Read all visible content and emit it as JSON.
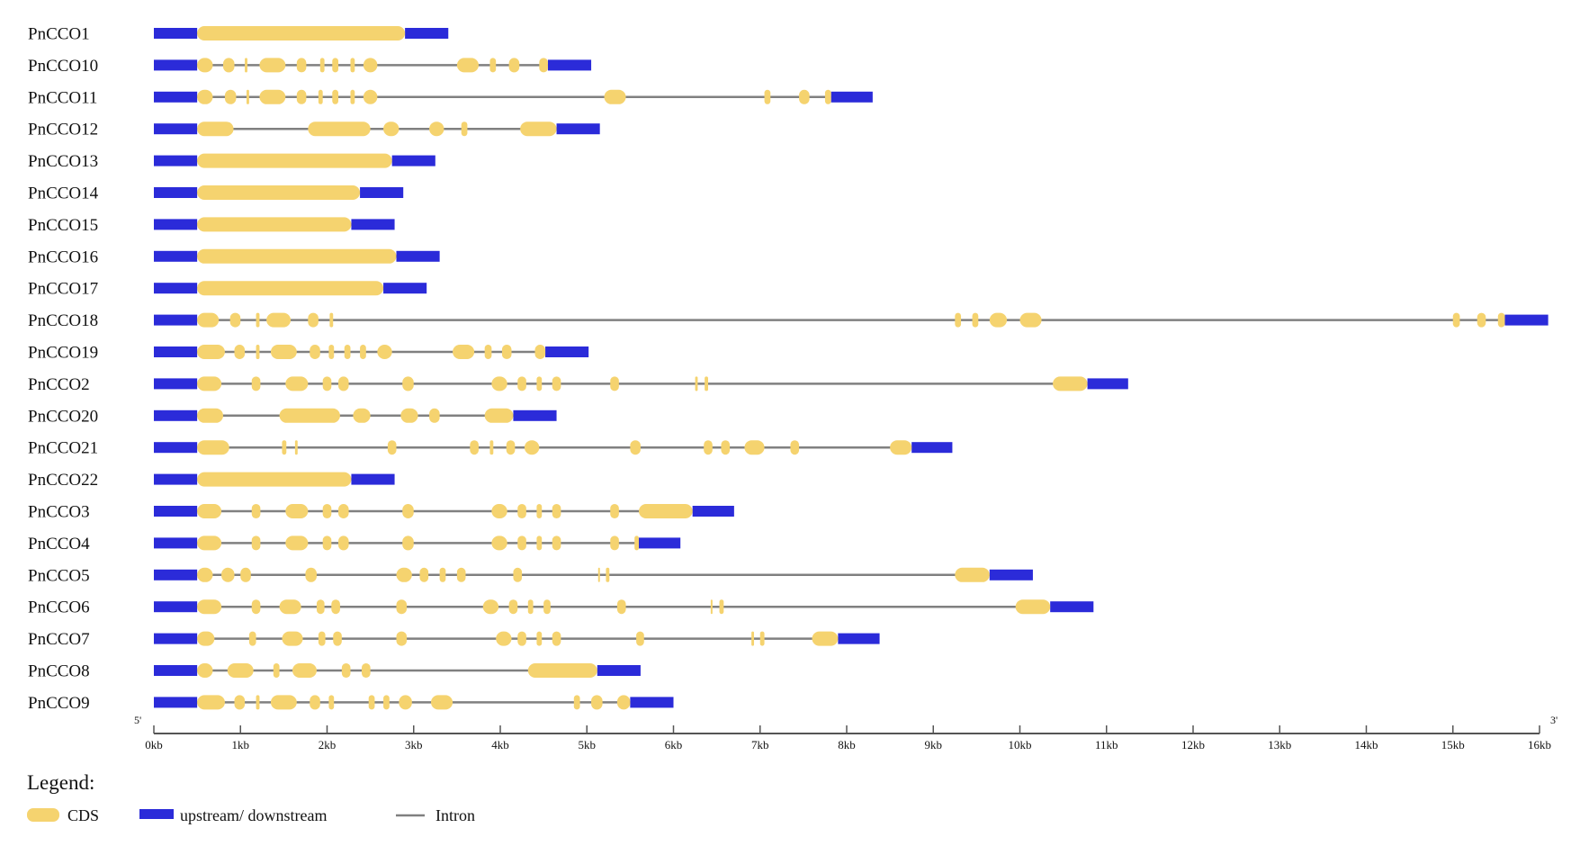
{
  "chart_data": {
    "type": "gene_structure",
    "x_unit": "kb",
    "x_range": [
      0,
      16
    ],
    "axis": {
      "left_end_label": "5'",
      "right_end_label": "3'",
      "ticks": [
        "0kb",
        "1kb",
        "2kb",
        "3kb",
        "4kb",
        "5kb",
        "6kb",
        "7kb",
        "8kb",
        "9kb",
        "10kb",
        "11kb",
        "12kb",
        "13kb",
        "14kb",
        "15kb",
        "16kb"
      ]
    },
    "colors": {
      "cds": "#f5d36f",
      "utr": "#2b2bd9",
      "intron": "#808080"
    },
    "genes": [
      {
        "name": "PnCCO1",
        "length": 3.4,
        "utr5": 0.5,
        "utr3_start": 2.9,
        "cds": [
          [
            0.5,
            2.9
          ]
        ]
      },
      {
        "name": "PnCCO10",
        "length": 5.05,
        "utr5": 0.5,
        "utr3_start": 4.55,
        "cds": [
          [
            0.5,
            0.68
          ],
          [
            0.8,
            0.93
          ],
          [
            1.05,
            1.08
          ],
          [
            1.22,
            1.52
          ],
          [
            1.65,
            1.76
          ],
          [
            1.92,
            1.97
          ],
          [
            2.06,
            2.13
          ],
          [
            2.27,
            2.32
          ],
          [
            2.42,
            2.58
          ],
          [
            3.5,
            3.75
          ],
          [
            3.88,
            3.95
          ],
          [
            4.1,
            4.22
          ],
          [
            4.45,
            4.55
          ]
        ]
      },
      {
        "name": "PnCCO11",
        "length": 8.3,
        "utr5": 0.5,
        "utr3_start": 7.82,
        "cds": [
          [
            0.5,
            0.68
          ],
          [
            0.82,
            0.95
          ],
          [
            1.07,
            1.1
          ],
          [
            1.22,
            1.52
          ],
          [
            1.65,
            1.76
          ],
          [
            1.9,
            1.95
          ],
          [
            2.06,
            2.13
          ],
          [
            2.27,
            2.32
          ],
          [
            2.42,
            2.58
          ],
          [
            5.2,
            5.45
          ],
          [
            7.05,
            7.12
          ],
          [
            7.45,
            7.57
          ],
          [
            7.75,
            7.82
          ]
        ]
      },
      {
        "name": "PnCCO12",
        "length": 5.15,
        "utr5": 0.5,
        "utr3_start": 4.65,
        "cds": [
          [
            0.5,
            0.92
          ],
          [
            1.78,
            2.5
          ],
          [
            2.65,
            2.83
          ],
          [
            3.18,
            3.35
          ],
          [
            3.55,
            3.62
          ],
          [
            4.23,
            4.65
          ]
        ]
      },
      {
        "name": "PnCCO13",
        "length": 3.25,
        "utr5": 0.5,
        "utr3_start": 2.75,
        "cds": [
          [
            0.5,
            2.75
          ]
        ]
      },
      {
        "name": "PnCCO14",
        "length": 2.88,
        "utr5": 0.5,
        "utr3_start": 2.38,
        "cds": [
          [
            0.5,
            2.38
          ]
        ]
      },
      {
        "name": "PnCCO15",
        "length": 2.78,
        "utr5": 0.5,
        "utr3_start": 2.28,
        "cds": [
          [
            0.5,
            2.28
          ]
        ]
      },
      {
        "name": "PnCCO16",
        "length": 3.3,
        "utr5": 0.5,
        "utr3_start": 2.8,
        "cds": [
          [
            0.5,
            2.8
          ]
        ]
      },
      {
        "name": "PnCCO17",
        "length": 3.15,
        "utr5": 0.5,
        "utr3_start": 2.65,
        "cds": [
          [
            0.5,
            2.65
          ]
        ]
      },
      {
        "name": "PnCCO18",
        "length": 16.1,
        "utr5": 0.5,
        "utr3_start": 15.6,
        "cds": [
          [
            0.5,
            0.75
          ],
          [
            0.88,
            1.0
          ],
          [
            1.18,
            1.22
          ],
          [
            1.3,
            1.58
          ],
          [
            1.78,
            1.9
          ],
          [
            2.03,
            2.07
          ],
          [
            9.25,
            9.32
          ],
          [
            9.45,
            9.52
          ],
          [
            9.65,
            9.85
          ],
          [
            10.0,
            10.25
          ],
          [
            15.0,
            15.08
          ],
          [
            15.28,
            15.38
          ],
          [
            15.52,
            15.6
          ]
        ]
      },
      {
        "name": "PnCCO19",
        "length": 5.02,
        "utr5": 0.5,
        "utr3_start": 4.52,
        "cds": [
          [
            0.5,
            0.82
          ],
          [
            0.93,
            1.05
          ],
          [
            1.18,
            1.22
          ],
          [
            1.35,
            1.65
          ],
          [
            1.8,
            1.92
          ],
          [
            2.02,
            2.08
          ],
          [
            2.2,
            2.27
          ],
          [
            2.38,
            2.45
          ],
          [
            2.58,
            2.75
          ],
          [
            3.45,
            3.7
          ],
          [
            3.82,
            3.9
          ],
          [
            4.02,
            4.13
          ],
          [
            4.4,
            4.52
          ]
        ]
      },
      {
        "name": "PnCCO2",
        "length": 11.25,
        "utr5": 0.5,
        "utr3_start": 10.78,
        "cds": [
          [
            0.5,
            0.78
          ],
          [
            1.13,
            1.23
          ],
          [
            1.52,
            1.78
          ],
          [
            1.95,
            2.05
          ],
          [
            2.13,
            2.25
          ],
          [
            2.87,
            3.0
          ],
          [
            3.9,
            4.08
          ],
          [
            4.2,
            4.3
          ],
          [
            4.42,
            4.48
          ],
          [
            4.6,
            4.7
          ],
          [
            5.27,
            5.37
          ],
          [
            6.25,
            6.28
          ],
          [
            6.36,
            6.4
          ],
          [
            10.38,
            10.78
          ]
        ]
      },
      {
        "name": "PnCCO20",
        "length": 4.65,
        "utr5": 0.5,
        "utr3_start": 4.15,
        "cds": [
          [
            0.5,
            0.8
          ],
          [
            1.45,
            2.15
          ],
          [
            2.3,
            2.5
          ],
          [
            2.85,
            3.05
          ],
          [
            3.18,
            3.3
          ],
          [
            3.82,
            4.15
          ]
        ]
      },
      {
        "name": "PnCCO21",
        "length": 9.22,
        "utr5": 0.5,
        "utr3_start": 8.75,
        "cds": [
          [
            0.5,
            0.87
          ],
          [
            1.48,
            1.53
          ],
          [
            1.63,
            1.66
          ],
          [
            2.7,
            2.8
          ],
          [
            3.65,
            3.75
          ],
          [
            3.88,
            3.92
          ],
          [
            4.07,
            4.17
          ],
          [
            4.28,
            4.45
          ],
          [
            5.5,
            5.62
          ],
          [
            6.35,
            6.45
          ],
          [
            6.55,
            6.65
          ],
          [
            6.82,
            7.05
          ],
          [
            7.35,
            7.45
          ],
          [
            8.5,
            8.75
          ]
        ]
      },
      {
        "name": "PnCCO22",
        "length": 2.78,
        "utr5": 0.5,
        "utr3_start": 2.28,
        "cds": [
          [
            0.5,
            2.28
          ]
        ]
      },
      {
        "name": "PnCCO3",
        "length": 6.7,
        "utr5": 0.5,
        "utr3_start": 6.22,
        "cds": [
          [
            0.5,
            0.78
          ],
          [
            1.13,
            1.23
          ],
          [
            1.52,
            1.78
          ],
          [
            1.95,
            2.05
          ],
          [
            2.13,
            2.25
          ],
          [
            2.87,
            3.0
          ],
          [
            3.9,
            4.08
          ],
          [
            4.2,
            4.3
          ],
          [
            4.42,
            4.48
          ],
          [
            4.6,
            4.7
          ],
          [
            5.27,
            5.37
          ],
          [
            5.6,
            6.22
          ]
        ]
      },
      {
        "name": "PnCCO4",
        "length": 6.08,
        "utr5": 0.5,
        "utr3_start": 5.6,
        "cds": [
          [
            0.5,
            0.78
          ],
          [
            1.13,
            1.23
          ],
          [
            1.52,
            1.78
          ],
          [
            1.95,
            2.05
          ],
          [
            2.13,
            2.25
          ],
          [
            2.87,
            3.0
          ],
          [
            3.9,
            4.08
          ],
          [
            4.2,
            4.3
          ],
          [
            4.42,
            4.48
          ],
          [
            4.6,
            4.7
          ],
          [
            5.27,
            5.37
          ],
          [
            5.55,
            5.6
          ]
        ]
      },
      {
        "name": "PnCCO5",
        "length": 10.15,
        "utr5": 0.5,
        "utr3_start": 9.65,
        "cds": [
          [
            0.5,
            0.68
          ],
          [
            0.78,
            0.93
          ],
          [
            1.0,
            1.12
          ],
          [
            1.75,
            1.88
          ],
          [
            2.8,
            2.98
          ],
          [
            3.07,
            3.17
          ],
          [
            3.3,
            3.37
          ],
          [
            3.5,
            3.6
          ],
          [
            4.15,
            4.25
          ],
          [
            5.13,
            5.15
          ],
          [
            5.22,
            5.26
          ],
          [
            9.25,
            9.65
          ]
        ]
      },
      {
        "name": "PnCCO6",
        "length": 10.85,
        "utr5": 0.5,
        "utr3_start": 10.35,
        "cds": [
          [
            0.5,
            0.78
          ],
          [
            1.13,
            1.23
          ],
          [
            1.45,
            1.7
          ],
          [
            1.88,
            1.97
          ],
          [
            2.05,
            2.15
          ],
          [
            2.8,
            2.92
          ],
          [
            3.8,
            3.98
          ],
          [
            4.1,
            4.2
          ],
          [
            4.32,
            4.38
          ],
          [
            4.5,
            4.58
          ],
          [
            5.35,
            5.45
          ],
          [
            6.43,
            6.45
          ],
          [
            6.53,
            6.58
          ],
          [
            9.95,
            10.35
          ]
        ]
      },
      {
        "name": "PnCCO7",
        "length": 8.38,
        "utr5": 0.5,
        "utr3_start": 7.9,
        "cds": [
          [
            0.5,
            0.7
          ],
          [
            1.1,
            1.18
          ],
          [
            1.48,
            1.72
          ],
          [
            1.9,
            1.98
          ],
          [
            2.07,
            2.17
          ],
          [
            2.8,
            2.92
          ],
          [
            3.95,
            4.13
          ],
          [
            4.2,
            4.3
          ],
          [
            4.42,
            4.48
          ],
          [
            4.6,
            4.7
          ],
          [
            5.57,
            5.66
          ],
          [
            6.9,
            6.93
          ],
          [
            7.0,
            7.05
          ],
          [
            7.6,
            7.9
          ]
        ]
      },
      {
        "name": "PnCCO8",
        "length": 5.62,
        "utr5": 0.5,
        "utr3_start": 5.12,
        "cds": [
          [
            0.5,
            0.68
          ],
          [
            0.85,
            1.15
          ],
          [
            1.38,
            1.45
          ],
          [
            1.6,
            1.88
          ],
          [
            2.17,
            2.27
          ],
          [
            2.4,
            2.5
          ],
          [
            4.32,
            5.12
          ]
        ]
      },
      {
        "name": "PnCCO9",
        "length": 6.0,
        "utr5": 0.5,
        "utr3_start": 5.5,
        "cds": [
          [
            0.5,
            0.82
          ],
          [
            0.93,
            1.05
          ],
          [
            1.18,
            1.22
          ],
          [
            1.35,
            1.65
          ],
          [
            1.8,
            1.92
          ],
          [
            2.02,
            2.08
          ],
          [
            2.48,
            2.55
          ],
          [
            2.65,
            2.72
          ],
          [
            2.83,
            2.98
          ],
          [
            3.2,
            3.45
          ],
          [
            4.85,
            4.92
          ],
          [
            5.05,
            5.18
          ],
          [
            5.35,
            5.5
          ]
        ]
      }
    ]
  },
  "legend": {
    "title": "Legend:",
    "items": [
      {
        "key": "cds",
        "label": "CDS"
      },
      {
        "key": "utr",
        "label": "upstream/ downstream"
      },
      {
        "key": "intron",
        "label": "Intron"
      }
    ]
  }
}
